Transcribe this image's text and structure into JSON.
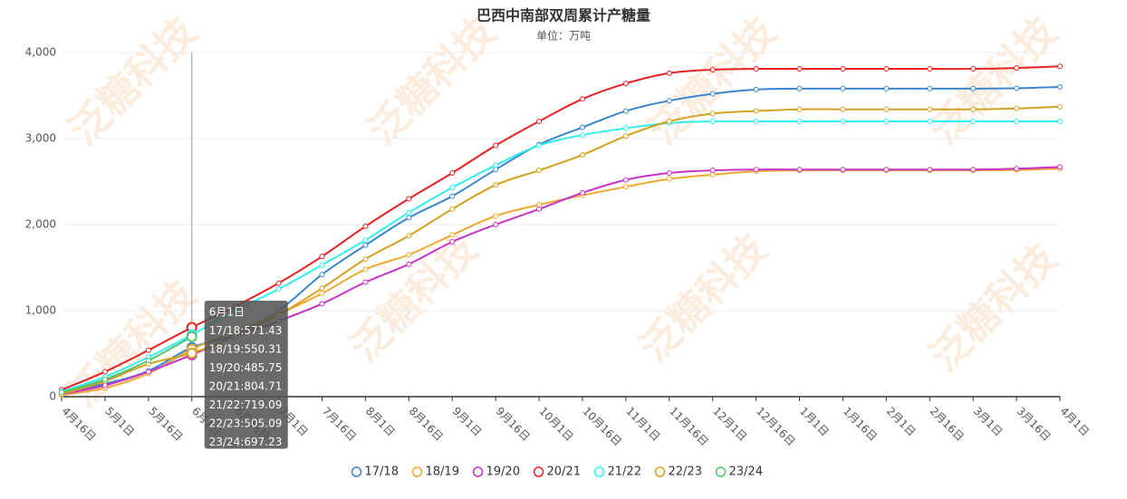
{
  "chart_data": {
    "type": "line",
    "title": "巴西中南部双周累计产糖量",
    "subtitle": "单位：万吨",
    "watermark": "泛糖科技",
    "categories": [
      "4月16日",
      "5月1日",
      "5月16日",
      "6月1日",
      "6月16日",
      "7月1日",
      "7月16日",
      "8月1日",
      "8月16日",
      "9月1日",
      "9月16日",
      "10月1日",
      "10月16日",
      "11月1日",
      "11月16日",
      "12月1日",
      "12月16日",
      "1月1日",
      "1月16日",
      "2月1日",
      "2月16日",
      "3月1日",
      "3月16日",
      "4月1日"
    ],
    "series": [
      {
        "name": "17/18",
        "color": "#3a86cc",
        "values": [
          50,
          150,
          300,
          571.43,
          720,
          1000,
          1420,
          1760,
          2080,
          2330,
          2640,
          2930,
          3130,
          3320,
          3440,
          3520,
          3570,
          3580,
          3580,
          3580,
          3580,
          3580,
          3585,
          3600
        ]
      },
      {
        "name": "18/19",
        "color": "#f0a830",
        "values": [
          20,
          100,
          270,
          550.31,
          760,
          960,
          1200,
          1480,
          1650,
          1880,
          2100,
          2230,
          2340,
          2440,
          2530,
          2580,
          2620,
          2630,
          2630,
          2630,
          2630,
          2630,
          2635,
          2650
        ]
      },
      {
        "name": "19/20",
        "color": "#c832c8",
        "values": [
          30,
          130,
          290,
          485.75,
          700,
          880,
          1080,
          1330,
          1540,
          1800,
          2000,
          2180,
          2370,
          2520,
          2600,
          2630,
          2640,
          2640,
          2640,
          2640,
          2640,
          2640,
          2650,
          2670
        ]
      },
      {
        "name": "20/21",
        "color": "#e82020",
        "values": [
          80,
          290,
          540,
          804.71,
          1050,
          1320,
          1630,
          1980,
          2300,
          2600,
          2920,
          3200,
          3460,
          3640,
          3760,
          3800,
          3810,
          3810,
          3810,
          3810,
          3810,
          3810,
          3820,
          3840
        ]
      },
      {
        "name": "21/22",
        "color": "#33eeee",
        "values": [
          60,
          230,
          460,
          719.09,
          1000,
          1250,
          1530,
          1820,
          2140,
          2430,
          2690,
          2920,
          3040,
          3120,
          3180,
          3200,
          3200,
          3200,
          3200,
          3200,
          3200,
          3200,
          3200,
          3200
        ]
      },
      {
        "name": "22/23",
        "color": "#d4a020",
        "values": [
          30,
          180,
          380,
          505.09,
          700,
          950,
          1260,
          1600,
          1870,
          2180,
          2460,
          2630,
          2810,
          3030,
          3200,
          3290,
          3320,
          3340,
          3340,
          3340,
          3340,
          3340,
          3350,
          3370
        ]
      },
      {
        "name": "23/24",
        "color": "#55c070",
        "values": [
          50,
          200,
          420,
          697.23,
          null,
          null,
          null,
          null,
          null,
          null,
          null,
          null,
          null,
          null,
          null,
          null,
          null,
          null,
          null,
          null,
          null,
          null,
          null,
          null
        ]
      }
    ],
    "ylim": [
      0,
      4000
    ],
    "yticks": [
      0,
      {
        "value": 1000,
        "label": "1,000"
      },
      {
        "value": 2000,
        "label": "2,000"
      },
      {
        "value": 3000,
        "label": "3,000"
      },
      {
        "value": 4000,
        "label": "4,000"
      }
    ],
    "grid": true,
    "legend": "bottom",
    "tooltip": {
      "category": 3,
      "title": "6月1日",
      "lines": [
        "17/18:571.43",
        "18/19:550.31",
        "19/20:485.75",
        "20/21:804.71",
        "21/22:719.09",
        "22/23:505.09",
        "23/24:697.23"
      ]
    }
  }
}
